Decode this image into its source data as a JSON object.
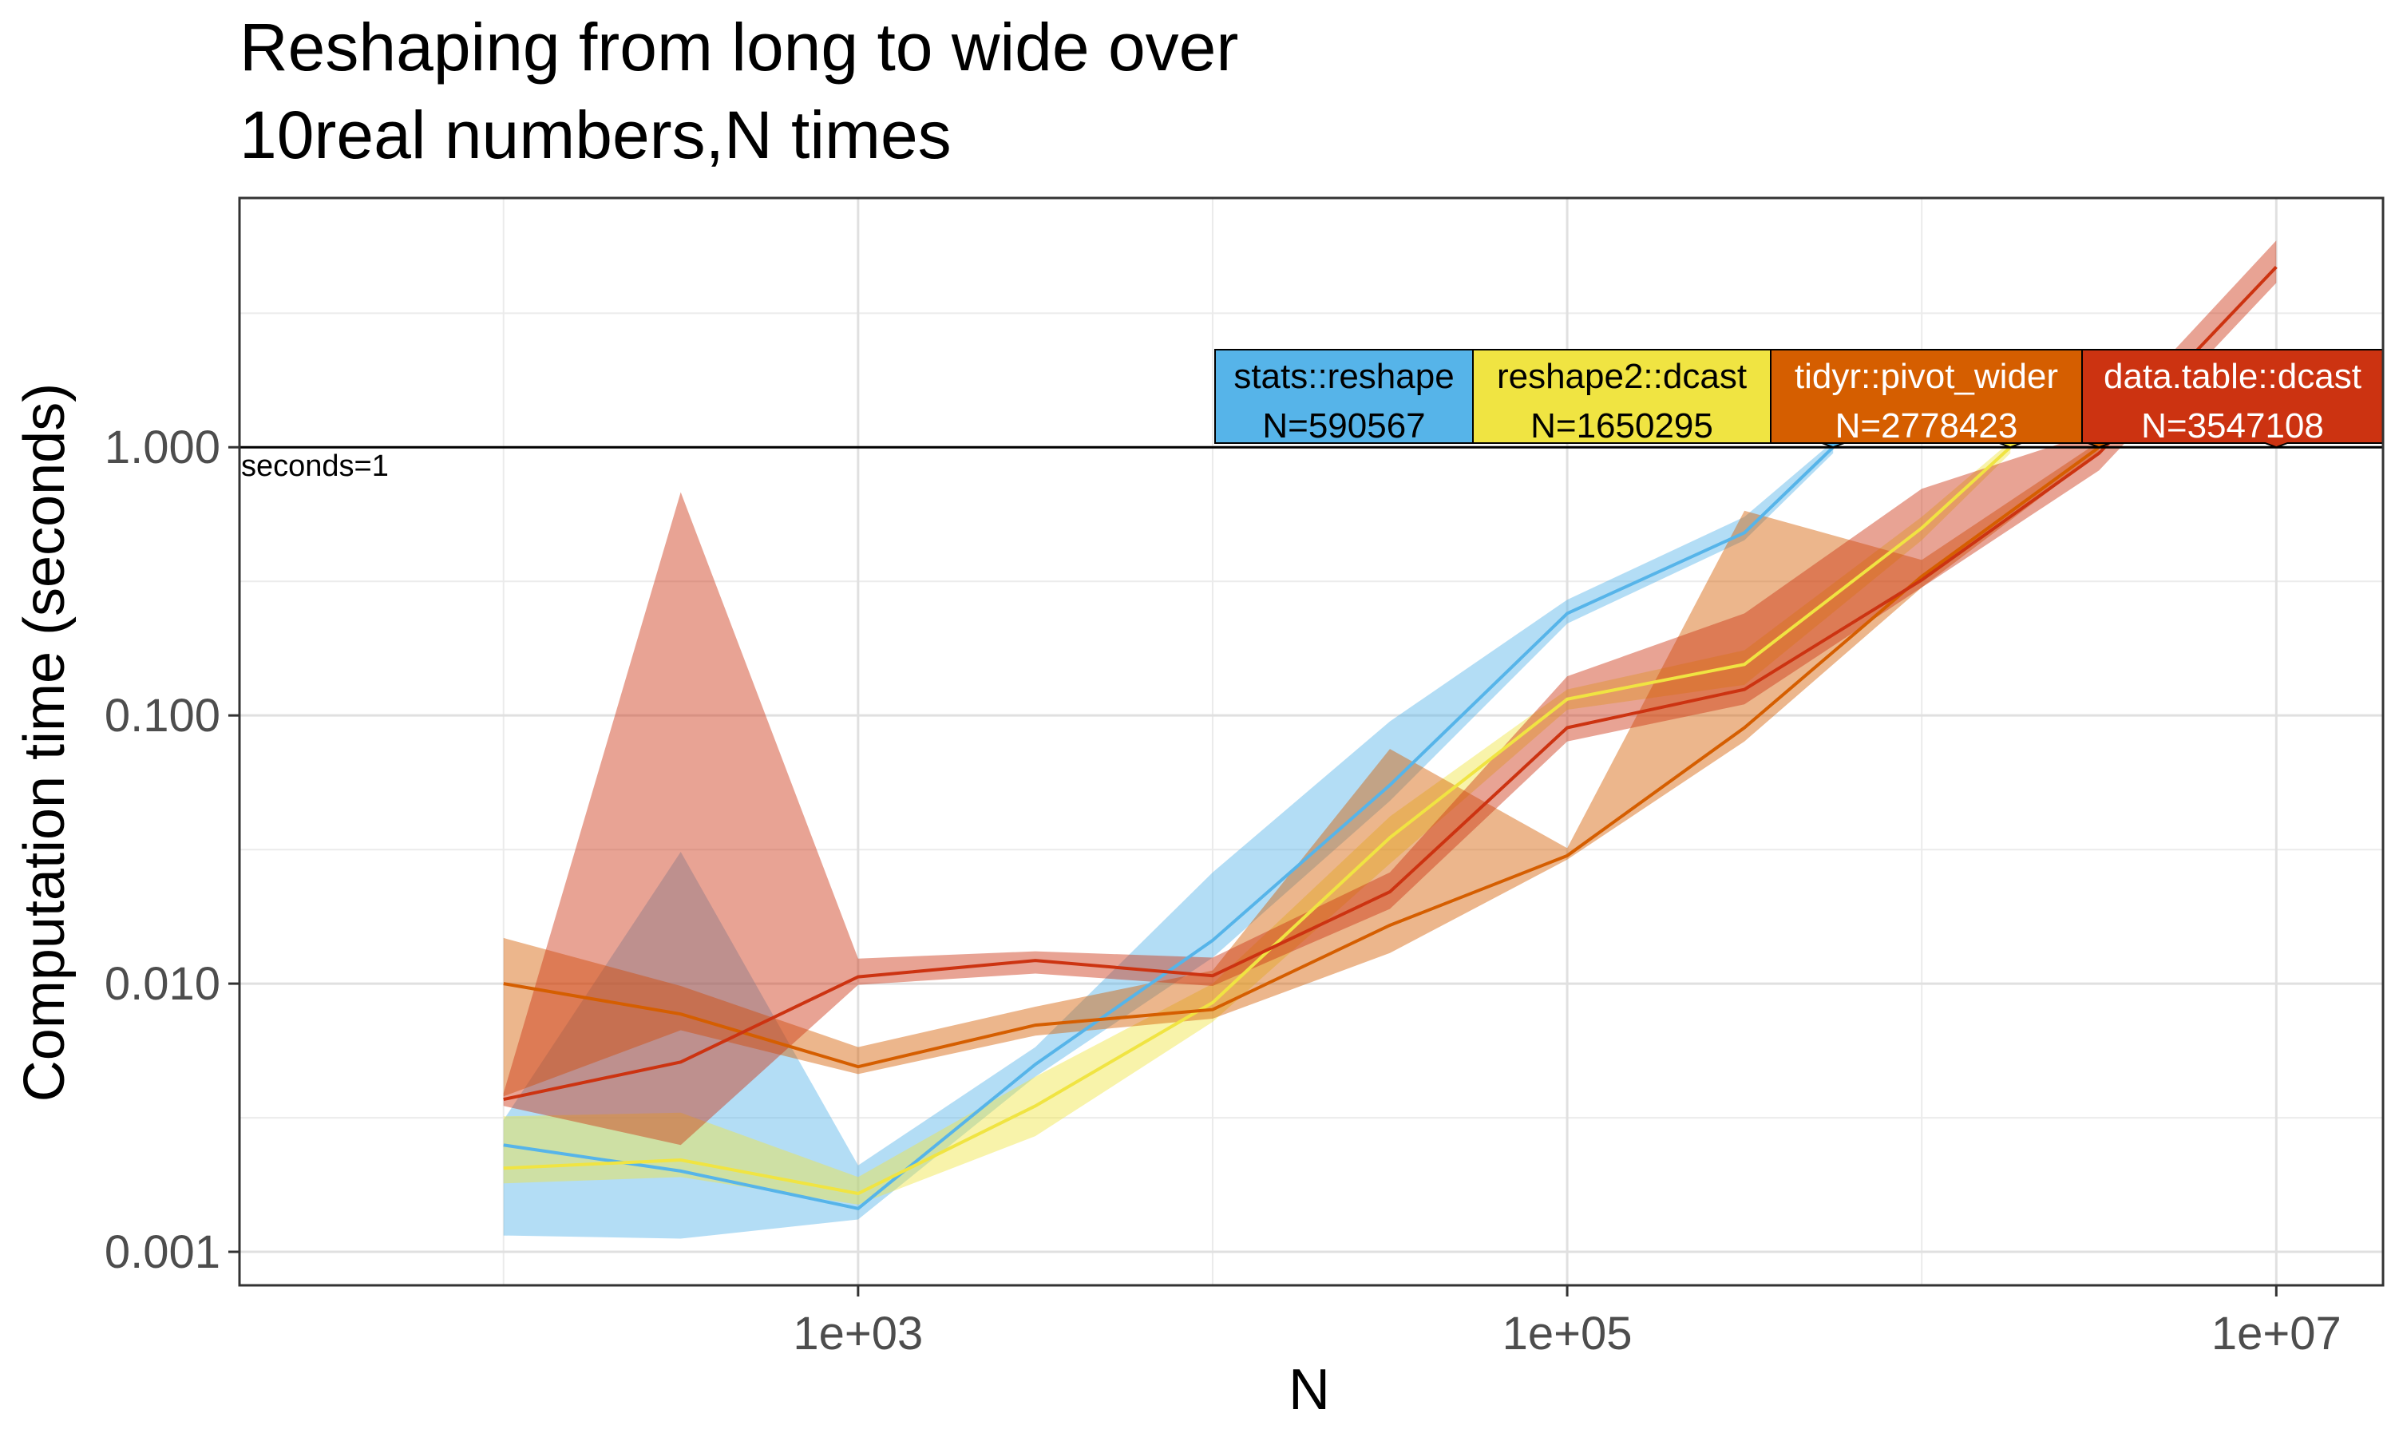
{
  "chart_data": {
    "type": "line",
    "title_line1": "Reshaping from long to wide over",
    "title_line2": "10real numbers,N times",
    "xlabel": "N",
    "ylabel": "Computation time (seconds)",
    "x_scale": "log10",
    "y_scale": "log10",
    "xlim": [
      18,
      20000000
    ],
    "ylim": [
      0.00075,
      8.5
    ],
    "x_ticks": [
      1000,
      100000,
      10000000
    ],
    "x_tick_labels": [
      "1e+03",
      "1e+05",
      "1e+07"
    ],
    "y_ticks": [
      0.001,
      0.01,
      0.1,
      1
    ],
    "y_tick_labels": [
      "0.001",
      "0.010",
      "0.100",
      "1.000"
    ],
    "grid": true,
    "reference_line": {
      "y": 1,
      "label": "seconds=1"
    },
    "series": [
      {
        "name": "stats::reshape",
        "color": "#56B4E9",
        "label": "N=590567",
        "x": [
          100,
          316,
          1000,
          3162,
          10000,
          31623,
          100000,
          316228,
          562341
        ],
        "median": [
          0.0025,
          0.002,
          0.00145,
          0.005,
          0.0145,
          0.055,
          0.24,
          0.48,
          1.0
        ],
        "lower": [
          0.00115,
          0.00112,
          0.00132,
          0.0045,
          0.0125,
          0.048,
          0.22,
          0.45,
          0.95
        ],
        "upper": [
          0.0031,
          0.031,
          0.0021,
          0.0058,
          0.026,
          0.095,
          0.27,
          0.55,
          1.05
        ]
      },
      {
        "name": "reshape2::dcast",
        "color": "#F0E442",
        "label": "N=1650295",
        "x": [
          100,
          316,
          1000,
          3162,
          10000,
          31623,
          100000,
          316228,
          1000000,
          1778279
        ],
        "median": [
          0.00205,
          0.0022,
          0.00165,
          0.0035,
          0.0085,
          0.035,
          0.115,
          0.155,
          0.5,
          1.0
        ],
        "lower": [
          0.0018,
          0.0019,
          0.0015,
          0.0027,
          0.0072,
          0.028,
          0.105,
          0.13,
          0.45,
          0.95
        ],
        "upper": [
          0.0032,
          0.0033,
          0.0019,
          0.0045,
          0.01,
          0.042,
          0.125,
          0.175,
          0.55,
          1.05
        ]
      },
      {
        "name": "tidyr::pivot_wider",
        "color": "#D55E00",
        "label": "N=2778423",
        "x": [
          100,
          316,
          1000,
          3162,
          10000,
          31623,
          100000,
          316228,
          1000000,
          3162278
        ],
        "median": [
          0.01,
          0.0077,
          0.0049,
          0.007,
          0.008,
          0.0165,
          0.03,
          0.09,
          0.33,
          1.0
        ],
        "lower": [
          0.0038,
          0.0067,
          0.0046,
          0.0064,
          0.0074,
          0.013,
          0.029,
          0.08,
          0.3,
          0.95
        ],
        "upper": [
          0.0148,
          0.0098,
          0.0058,
          0.0082,
          0.0112,
          0.075,
          0.032,
          0.58,
          0.38,
          1.05
        ]
      },
      {
        "name": "data.table::dcast",
        "color": "#CC3311",
        "label": "N=3547108",
        "x": [
          100,
          316,
          1000,
          3162,
          10000,
          31623,
          100000,
          316228,
          1000000,
          3162278,
          10000000
        ],
        "median": [
          0.0037,
          0.0051,
          0.0106,
          0.0122,
          0.0107,
          0.022,
          0.09,
          0.125,
          0.32,
          0.95,
          4.7
        ],
        "lower": [
          0.0035,
          0.0025,
          0.0099,
          0.0109,
          0.0098,
          0.019,
          0.08,
          0.11,
          0.3,
          0.82,
          4.1
        ],
        "upper": [
          0.0039,
          0.68,
          0.0124,
          0.0132,
          0.0125,
          0.026,
          0.14,
          0.24,
          0.7,
          1.15,
          5.9
        ]
      }
    ]
  }
}
